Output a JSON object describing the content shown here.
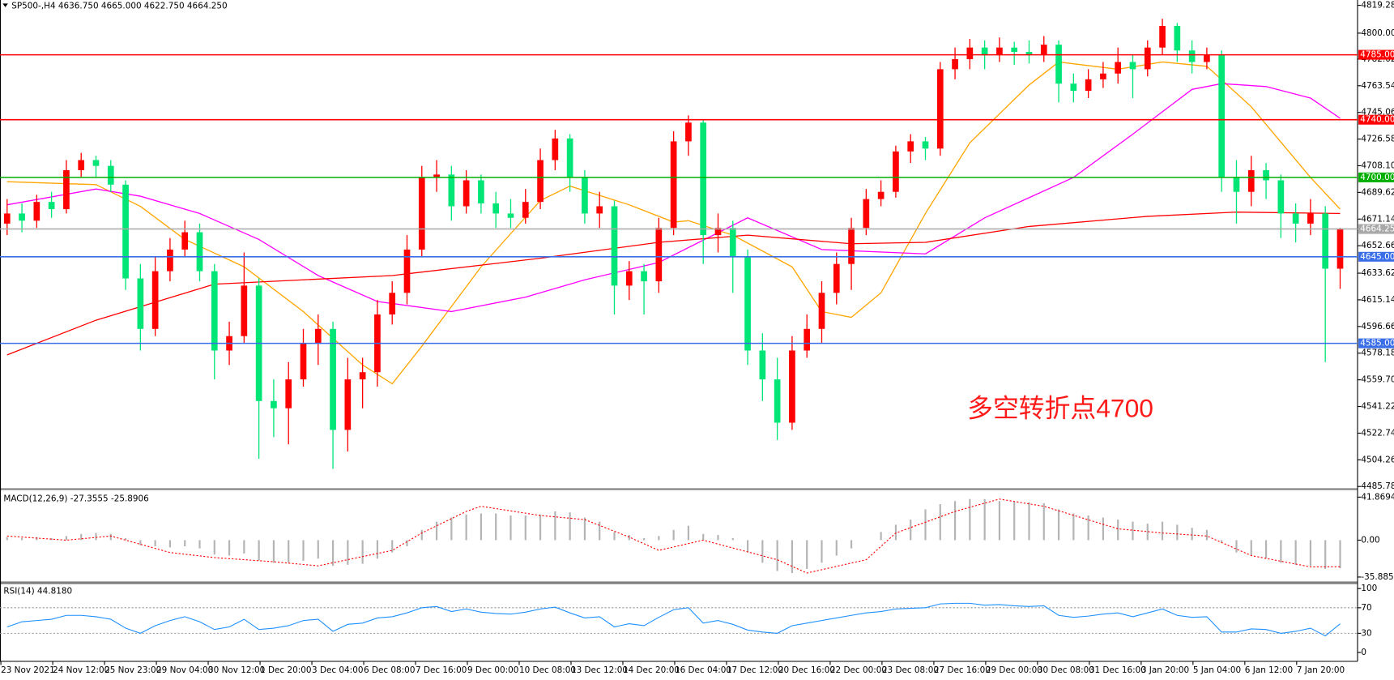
{
  "header": "SP500-,H4  4636.750 4665.000 4622.750 4664.250",
  "chart_data": [
    {
      "type": "candlestick",
      "ylim": [
        4485.78,
        4819.28
      ],
      "yticks": [
        {
          "value": 4819.28,
          "label": "4819.280"
        },
        {
          "value": 4800,
          "label": "4800.000"
        },
        {
          "value": 4782.02,
          "label": "4782.020"
        },
        {
          "value": 4763.54,
          "label": "4763.540"
        },
        {
          "value": 4745.06,
          "label": "4745.060"
        },
        {
          "value": 4726.58,
          "label": "4726.580"
        },
        {
          "value": 4708.1,
          "label": "4708.100"
        },
        {
          "value": 4689.62,
          "label": "4689.620"
        },
        {
          "value": 4671.14,
          "label": "4671.140"
        },
        {
          "value": 4652.66,
          "label": "4652.660"
        },
        {
          "value": 4633.62,
          "label": "4633.620"
        },
        {
          "value": 4615.14,
          "label": "4615.140"
        },
        {
          "value": 4596.66,
          "label": "4596.660"
        },
        {
          "value": 4578.18,
          "label": "4578.180"
        },
        {
          "value": 4559.7,
          "label": "4559.700"
        },
        {
          "value": 4541.22,
          "label": "4541.220"
        },
        {
          "value": 4522.74,
          "label": "4522.740"
        },
        {
          "value": 4504.26,
          "label": "4504.260"
        },
        {
          "value": 4485.78,
          "label": "4485.780"
        }
      ],
      "up_color": "#ff0000",
      "down_color": "#00e676",
      "ohlc": [
        [
          4668,
          4685,
          4660,
          4675
        ],
        [
          4675,
          4682,
          4662,
          4670
        ],
        [
          4670,
          4688,
          4665,
          4683
        ],
        [
          4683,
          4690,
          4672,
          4678
        ],
        [
          4678,
          4712,
          4675,
          4705
        ],
        [
          4705,
          4717,
          4700,
          4712
        ],
        [
          4712,
          4715,
          4700,
          4708
        ],
        [
          4708,
          4712,
          4690,
          4695
        ],
        [
          4695,
          4698,
          4622,
          4630
        ],
        [
          4630,
          4640,
          4580,
          4595
        ],
        [
          4595,
          4645,
          4590,
          4635
        ],
        [
          4635,
          4658,
          4628,
          4650
        ],
        [
          4650,
          4670,
          4645,
          4662
        ],
        [
          4662,
          4668,
          4628,
          4635
        ],
        [
          4635,
          4640,
          4560,
          4580
        ],
        [
          4580,
          4600,
          4570,
          4590
        ],
        [
          4590,
          4648,
          4585,
          4625
        ],
        [
          4625,
          4630,
          4505,
          4545
        ],
        [
          4545,
          4560,
          4520,
          4540
        ],
        [
          4540,
          4572,
          4515,
          4560
        ],
        [
          4560,
          4595,
          4555,
          4585
        ],
        [
          4585,
          4605,
          4570,
          4595
        ],
        [
          4595,
          4600,
          4498,
          4525
        ],
        [
          4525,
          4575,
          4510,
          4560
        ],
        [
          4560,
          4575,
          4540,
          4565
        ],
        [
          4565,
          4615,
          4555,
          4605
        ],
        [
          4605,
          4628,
          4598,
          4620
        ],
        [
          4620,
          4660,
          4612,
          4650
        ],
        [
          4650,
          4708,
          4645,
          4700
        ],
        [
          4700,
          4712,
          4690,
          4702
        ],
        [
          4702,
          4708,
          4670,
          4680
        ],
        [
          4680,
          4705,
          4675,
          4698
        ],
        [
          4698,
          4702,
          4675,
          4682
        ],
        [
          4682,
          4690,
          4665,
          4675
        ],
        [
          4675,
          4685,
          4665,
          4672
        ],
        [
          4672,
          4692,
          4668,
          4683
        ],
        [
          4683,
          4720,
          4678,
          4712
        ],
        [
          4712,
          4733,
          4705,
          4727
        ],
        [
          4727,
          4730,
          4690,
          4700
        ],
        [
          4700,
          4705,
          4668,
          4675
        ],
        [
          4675,
          4690,
          4665,
          4680
        ],
        [
          4680,
          4684,
          4605,
          4625
        ],
        [
          4625,
          4642,
          4615,
          4635
        ],
        [
          4635,
          4640,
          4605,
          4628
        ],
        [
          4628,
          4672,
          4620,
          4665
        ],
        [
          4665,
          4732,
          4660,
          4725
        ],
        [
          4725,
          4743,
          4715,
          4738
        ],
        [
          4738,
          4740,
          4640,
          4660
        ],
        [
          4660,
          4675,
          4648,
          4665
        ],
        [
          4665,
          4670,
          4620,
          4645
        ],
        [
          4645,
          4650,
          4570,
          4580
        ],
        [
          4580,
          4592,
          4545,
          4560
        ],
        [
          4560,
          4575,
          4518,
          4530
        ],
        [
          4530,
          4590,
          4525,
          4580
        ],
        [
          4580,
          4605,
          4575,
          4595
        ],
        [
          4595,
          4628,
          4585,
          4620
        ],
        [
          4620,
          4648,
          4612,
          4640
        ],
        [
          4640,
          4672,
          4622,
          4665
        ],
        [
          4665,
          4692,
          4660,
          4685
        ],
        [
          4685,
          4698,
          4680,
          4690
        ],
        [
          4690,
          4722,
          4686,
          4718
        ],
        [
          4718,
          4730,
          4710,
          4725
        ],
        [
          4725,
          4728,
          4712,
          4720
        ],
        [
          4720,
          4780,
          4715,
          4775
        ],
        [
          4775,
          4790,
          4768,
          4782
        ],
        [
          4782,
          4796,
          4775,
          4790
        ],
        [
          4790,
          4795,
          4775,
          4785
        ],
        [
          4785,
          4797,
          4780,
          4790
        ],
        [
          4790,
          4794,
          4778,
          4787
        ],
        [
          4787,
          4795,
          4779,
          4785
        ],
        [
          4785,
          4798,
          4780,
          4792
        ],
        [
          4792,
          4795,
          4752,
          4765
        ],
        [
          4765,
          4772,
          4752,
          4760
        ],
        [
          4760,
          4775,
          4755,
          4768
        ],
        [
          4768,
          4780,
          4762,
          4772
        ],
        [
          4772,
          4790,
          4765,
          4780
        ],
        [
          4780,
          4785,
          4755,
          4775
        ],
        [
          4775,
          4795,
          4770,
          4790
        ],
        [
          4790,
          4810,
          4785,
          4805
        ],
        [
          4805,
          4807,
          4780,
          4788
        ],
        [
          4788,
          4795,
          4772,
          4780
        ],
        [
          4780,
          4790,
          4775,
          4785
        ],
        [
          4785,
          4788,
          4690,
          4700
        ],
        [
          4700,
          4712,
          4668,
          4690
        ],
        [
          4690,
          4715,
          4680,
          4705
        ],
        [
          4705,
          4710,
          4685,
          4698
        ],
        [
          4698,
          4702,
          4658,
          4675
        ],
        [
          4675,
          4682,
          4655,
          4668
        ],
        [
          4668,
          4685,
          4660,
          4675
        ],
        [
          4675,
          4680,
          4572,
          4636.75
        ],
        [
          4636.75,
          4665,
          4622.75,
          4664.25
        ]
      ],
      "x_labels": [
        "23 Nov 2021",
        "24 Nov 12:00",
        "25 Nov 23:00",
        "29 Nov 04:00",
        "30 Nov 12:00",
        "1 Dec 20:00",
        "3 Dec 04:00",
        "6 Dec 08:00",
        "7 Dec 16:00",
        "9 Dec 00:00",
        "10 Dec 08:00",
        "13 Dec 12:00",
        "14 Dec 20:00",
        "16 Dec 04:00",
        "17 Dec 12:00",
        "20 Dec 16:00",
        "22 Dec 00:00",
        "23 Dec 08:00",
        "27 Dec 16:00",
        "29 Dec 00:00",
        "30 Dec 08:00",
        "31 Dec 16:00",
        "3 Jan 20:00",
        "5 Jan 04:00",
        "6 Jan 12:00",
        "7 Jan 20:00"
      ],
      "moving_averages": [
        {
          "color": "#ffa500",
          "x": [
            0,
            6,
            9,
            12,
            16,
            20,
            24,
            26,
            28,
            32,
            36,
            38,
            42,
            45,
            46,
            49,
            53,
            55,
            57,
            59,
            62,
            65,
            69,
            71,
            75,
            78,
            81,
            84,
            88,
            90
          ],
          "values": [
            4697,
            4695,
            4680,
            4657,
            4638,
            4607,
            4570,
            4557,
            4583,
            4638,
            4684,
            4694,
            4681,
            4669,
            4670,
            4660,
            4638,
            4607,
            4603,
            4620,
            4675,
            4724,
            4764,
            4780,
            4775,
            4780,
            4777,
            4749,
            4700,
            4678
          ]
        },
        {
          "color": "#ff00ff",
          "x": [
            0,
            6,
            9,
            13,
            17,
            21,
            25,
            30,
            35,
            39,
            44,
            50,
            55,
            62,
            66,
            72,
            76,
            80,
            82,
            85,
            88,
            90
          ],
          "values": [
            4681,
            4692,
            4687,
            4675,
            4657,
            4632,
            4614,
            4607,
            4617,
            4629,
            4641,
            4672,
            4650,
            4647,
            4672,
            4700,
            4730,
            4761,
            4765,
            4763,
            4755,
            4741
          ]
        },
        {
          "color": "#ff0000",
          "x": [
            0,
            6,
            14,
            20,
            26,
            36,
            44,
            50,
            57,
            62,
            69,
            77,
            83,
            90
          ],
          "values": [
            4577,
            4601,
            4626,
            4629,
            4632,
            4644,
            4655,
            4660,
            4654,
            4655,
            4666,
            4673,
            4676,
            4675
          ]
        }
      ],
      "levels": [
        {
          "value": 4785,
          "label": "4785.000",
          "color": "#ff0000"
        },
        {
          "value": 4740,
          "label": "4740.000",
          "color": "#ff0000"
        },
        {
          "value": 4700,
          "label": "4700.000",
          "color": "#00b000"
        },
        {
          "value": 4664.25,
          "label": "4664.250",
          "color": "#a8a8a8"
        },
        {
          "value": 4645,
          "label": "4645.000",
          "color": "#3a6ee8"
        },
        {
          "value": 4585,
          "label": "4585.000",
          "color": "#3a6ee8"
        }
      ],
      "annotation": "多空转折点4700"
    },
    {
      "type": "macd",
      "title": "MACD(12,26,9) -27.3555 -25.8906",
      "ylim": [
        -35.8856,
        41.8694
      ],
      "yticks": [
        41.8694,
        {
          "value": 0,
          "label": "0.00"
        },
        -35.8856
      ],
      "color": "#b4b4b4",
      "histogram": [
        3,
        2,
        3,
        2,
        4,
        6,
        7,
        6,
        2,
        -5,
        -6,
        -7,
        -6,
        -8,
        -14,
        -15,
        -13,
        -20,
        -22,
        -22,
        -20,
        -18,
        -25,
        -24,
        -23,
        -18,
        -12,
        -6,
        10,
        18,
        22,
        25,
        26,
        26,
        24,
        24,
        25,
        28,
        27,
        22,
        18,
        8,
        5,
        2,
        4,
        10,
        14,
        6,
        5,
        2,
        -12,
        -22,
        -30,
        -32,
        -28,
        -22,
        -15,
        -8,
        0,
        8,
        15,
        20,
        30,
        35,
        38,
        40,
        40,
        38,
        38,
        37,
        36,
        30,
        26,
        24,
        22,
        20,
        18,
        16,
        18,
        15,
        12,
        10,
        -2,
        -12,
        -15,
        -18,
        -22,
        -24,
        -25,
        -28,
        -27.3555
      ],
      "signal": {
        "color": "#ff0000",
        "x": [
          0,
          4,
          7,
          11,
          14,
          18,
          21,
          26,
          28,
          31,
          32,
          36,
          39,
          42,
          44,
          47,
          52,
          54,
          58,
          60,
          64,
          67,
          70,
          75,
          78,
          81,
          84,
          88,
          90
        ],
        "values": [
          4,
          0,
          4,
          -12,
          -17,
          -21,
          -25,
          -10,
          7,
          28,
          33,
          24,
          20,
          3,
          -10,
          0,
          -19,
          -32,
          -19,
          7,
          28,
          40,
          33,
          11,
          7,
          4,
          -15,
          -26,
          -25.8906
        ]
      }
    },
    {
      "type": "rsi",
      "title": "RSI(14) 44.8180",
      "ylim": [
        0,
        100
      ],
      "yticks": [
        100,
        70,
        30,
        0
      ],
      "levels": [
        70,
        30
      ],
      "color": "#1e90ff",
      "values": [
        40,
        48,
        50,
        52,
        58,
        58,
        56,
        52,
        38,
        30,
        42,
        50,
        56,
        48,
        36,
        40,
        52,
        36,
        38,
        42,
        50,
        52,
        33,
        44,
        46,
        54,
        56,
        62,
        70,
        72,
        64,
        68,
        63,
        61,
        60,
        63,
        68,
        71,
        62,
        54,
        56,
        40,
        45,
        42,
        55,
        67,
        70,
        46,
        50,
        44,
        35,
        32,
        30,
        42,
        46,
        50,
        54,
        58,
        62,
        64,
        68,
        69,
        70,
        76,
        77,
        77,
        74,
        75,
        73,
        72,
        73,
        58,
        55,
        57,
        60,
        62,
        56,
        62,
        68,
        58,
        55,
        56,
        32,
        32,
        37,
        36,
        30,
        33,
        38,
        26,
        44.818
      ]
    }
  ]
}
